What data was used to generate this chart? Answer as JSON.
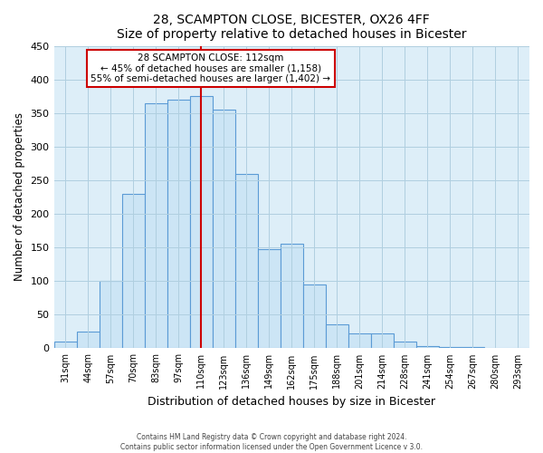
{
  "title": "28, SCAMPTON CLOSE, BICESTER, OX26 4FF",
  "subtitle": "Size of property relative to detached houses in Bicester",
  "xlabel": "Distribution of detached houses by size in Bicester",
  "ylabel": "Number of detached properties",
  "footer_line1": "Contains HM Land Registry data © Crown copyright and database right 2024.",
  "footer_line2": "Contains public sector information licensed under the Open Government Licence v 3.0.",
  "bar_labels": [
    "31sqm",
    "44sqm",
    "57sqm",
    "70sqm",
    "83sqm",
    "97sqm",
    "110sqm",
    "123sqm",
    "136sqm",
    "149sqm",
    "162sqm",
    "175sqm",
    "188sqm",
    "201sqm",
    "214sqm",
    "228sqm",
    "241sqm",
    "254sqm",
    "267sqm",
    "280sqm",
    "293sqm"
  ],
  "bar_values": [
    10,
    25,
    100,
    230,
    365,
    370,
    375,
    355,
    260,
    148,
    155,
    95,
    35,
    22,
    22,
    10,
    3,
    2,
    2,
    1,
    1
  ],
  "bar_color": "#cce5f5",
  "bar_edge_color": "#5b9bd5",
  "vline_x_index": 6,
  "vline_color": "#cc0000",
  "annotation_title": "28 SCAMPTON CLOSE: 112sqm",
  "annotation_left": "← 45% of detached houses are smaller (1,158)",
  "annotation_right": "55% of semi-detached houses are larger (1,402) →",
  "annotation_box_color": "#ffffff",
  "annotation_box_edge": "#cc0000",
  "ylim": [
    0,
    450
  ],
  "yticks": [
    0,
    50,
    100,
    150,
    200,
    250,
    300,
    350,
    400,
    450
  ],
  "bg_color": "#ffffff",
  "plot_bg_color": "#ddeef8",
  "grid_color": "#b0cfe0"
}
